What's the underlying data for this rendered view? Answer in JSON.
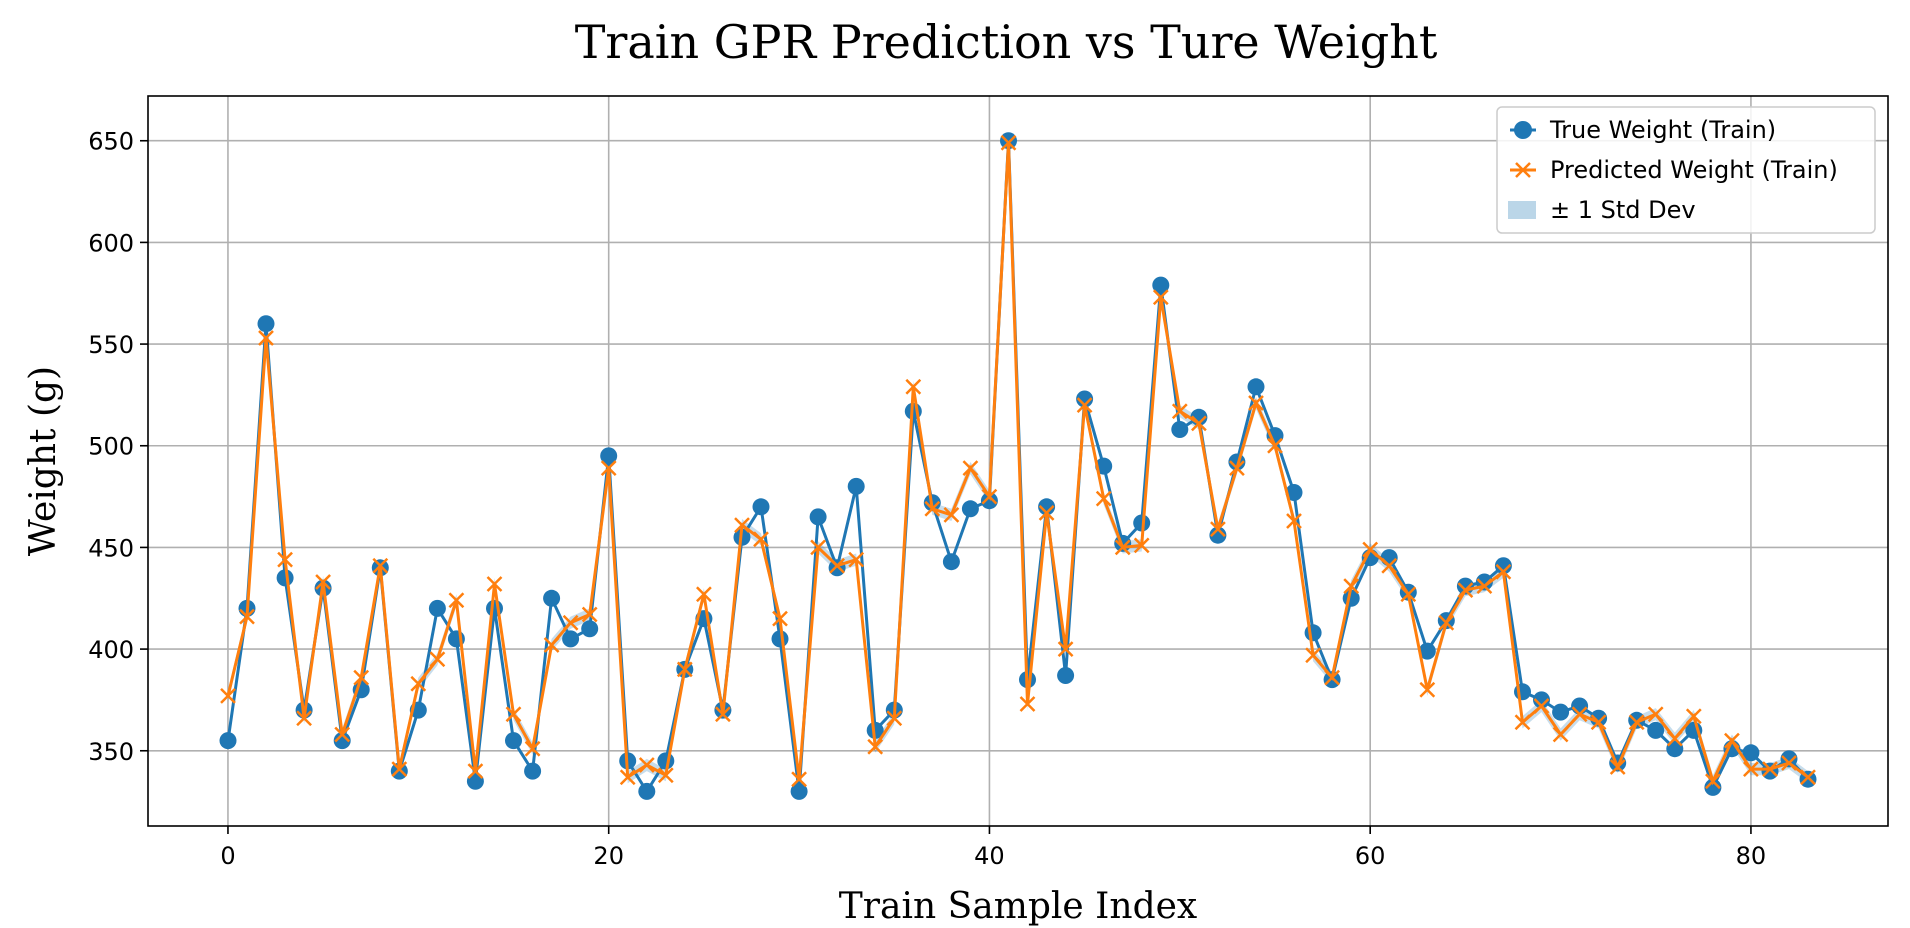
{
  "chart_data": {
    "type": "line",
    "title": "Train GPR Prediction vs Ture Weight",
    "xlabel": "Train Sample Index",
    "ylabel": "Weight (g)",
    "xlim": [
      -4.2,
      87.2
    ],
    "ylim": [
      313,
      672
    ],
    "xticks": [
      0,
      20,
      40,
      60,
      80
    ],
    "yticks": [
      350,
      400,
      450,
      500,
      550,
      600,
      650
    ],
    "grid": true,
    "legend_position": "top-right",
    "series": [
      {
        "name": "True Weight (Train)",
        "color": "#1f77b4",
        "marker": "circle",
        "values": [
          355,
          420,
          560,
          435,
          370,
          430,
          355,
          380,
          440,
          340,
          370,
          420,
          405,
          335,
          420,
          355,
          340,
          425,
          405,
          410,
          495,
          345,
          330,
          345,
          390,
          415,
          370,
          455,
          470,
          405,
          330,
          465,
          440,
          480,
          360,
          370,
          517,
          472,
          443,
          469,
          473,
          650,
          385,
          470,
          387,
          523,
          490,
          452,
          462,
          579,
          508,
          514,
          456,
          492,
          529,
          505,
          477,
          408,
          385,
          425,
          445,
          445,
          428,
          399,
          414,
          431,
          433,
          441,
          379,
          375,
          369,
          372,
          366,
          344,
          365,
          360,
          351,
          360,
          332,
          351,
          349,
          340,
          346,
          336
        ]
      },
      {
        "name": "Predicted Weight (Train)",
        "color": "#ff7f0e",
        "marker": "x",
        "values": [
          377,
          416,
          553,
          444,
          366,
          433,
          358,
          386,
          441,
          341,
          383,
          395,
          424,
          340,
          432,
          368,
          351,
          402,
          413,
          417,
          489,
          337,
          343,
          338,
          390,
          427,
          368,
          461,
          454,
          415,
          336,
          450,
          441,
          444,
          352,
          366,
          529,
          469,
          466,
          489,
          475,
          649,
          373,
          467,
          400,
          520,
          474,
          450,
          451,
          573,
          517,
          511,
          459,
          489,
          521,
          500,
          463,
          397,
          386,
          431,
          449,
          441,
          427,
          380,
          413,
          429,
          431,
          438,
          364,
          372,
          358,
          368,
          364,
          342,
          364,
          368,
          356,
          367,
          335,
          355,
          341,
          341,
          344,
          337
        ]
      }
    ],
    "legend": [
      {
        "label": "True Weight (Train)",
        "color": "#1f77b4",
        "kind": "line-circle"
      },
      {
        "label": "Predicted Weight (Train)",
        "color": "#ff7f0e",
        "kind": "line-x"
      },
      {
        "label": "± 1 Std Dev",
        "color": "#1f77b4",
        "kind": "band"
      }
    ]
  }
}
